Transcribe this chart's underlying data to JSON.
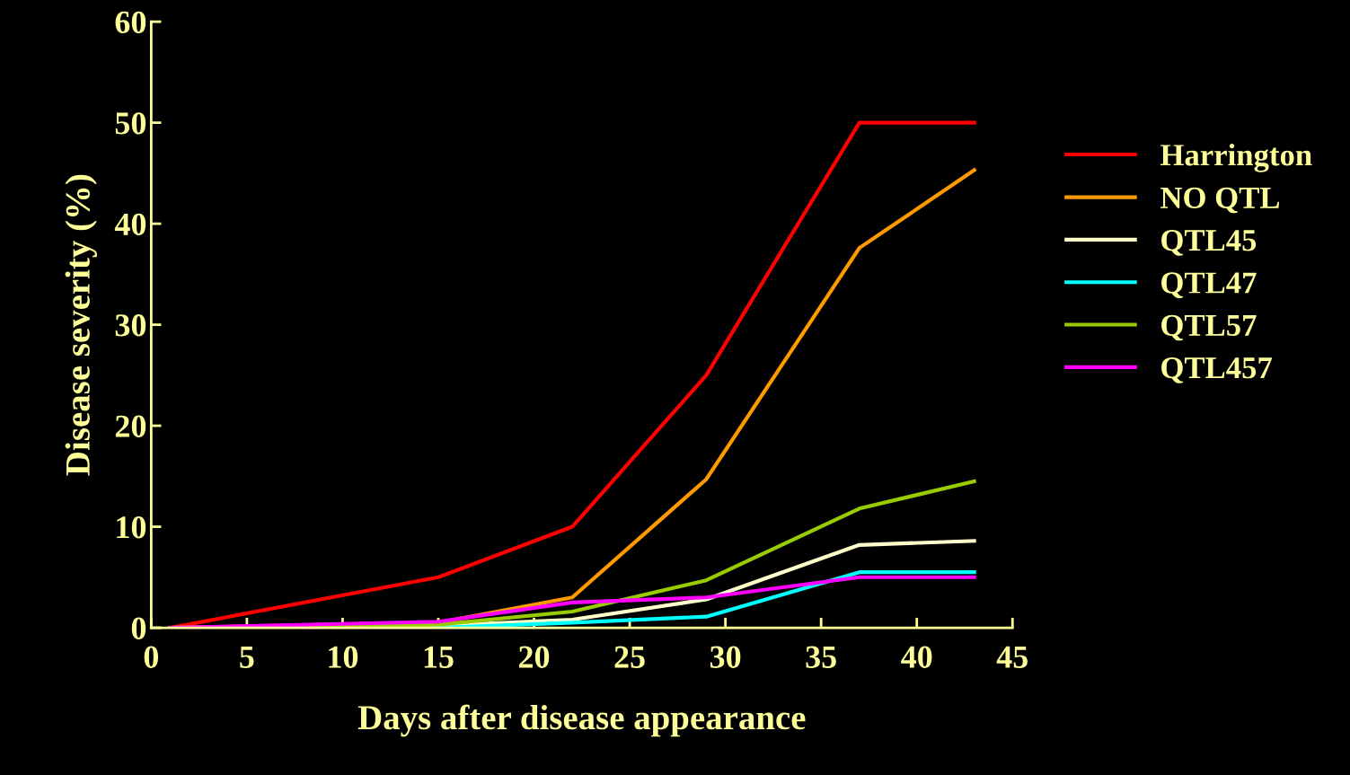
{
  "chart_data": {
    "type": "line",
    "xlabel": "Days after disease appearance",
    "ylabel": "Disease severity (%)",
    "x": [
      1,
      15,
      22,
      29,
      37,
      43
    ],
    "series": [
      {
        "name": "Harrington",
        "color": "#ff0000",
        "values": [
          0,
          5,
          10,
          25,
          50,
          50
        ]
      },
      {
        "name": "NO QTL",
        "color": "#ff9900",
        "values": [
          0,
          0.5,
          3,
          14.7,
          37.6,
          45.3
        ]
      },
      {
        "name": "QTL45",
        "color": "#ffffcc",
        "values": [
          0,
          0.2,
          0.8,
          2.8,
          8.2,
          8.6
        ]
      },
      {
        "name": "QTL47",
        "color": "#00ffff",
        "values": [
          0,
          0,
          0.5,
          1.1,
          5.5,
          5.5
        ]
      },
      {
        "name": "QTL57",
        "color": "#99cc00",
        "values": [
          0,
          0.3,
          1.6,
          4.7,
          11.8,
          14.5
        ]
      },
      {
        "name": "QTL457",
        "color": "#ff00ff",
        "values": [
          0,
          0.6,
          2.5,
          3.0,
          5.0,
          5.0
        ]
      }
    ],
    "xlim": [
      0,
      45
    ],
    "xticks": [
      0,
      5,
      10,
      15,
      20,
      25,
      30,
      35,
      40,
      45
    ],
    "ylim": [
      0,
      60
    ],
    "yticks": [
      0,
      10,
      20,
      30,
      40,
      50,
      60
    ],
    "grid": false,
    "legend": "right",
    "marker": "none",
    "line_style": "solid"
  }
}
